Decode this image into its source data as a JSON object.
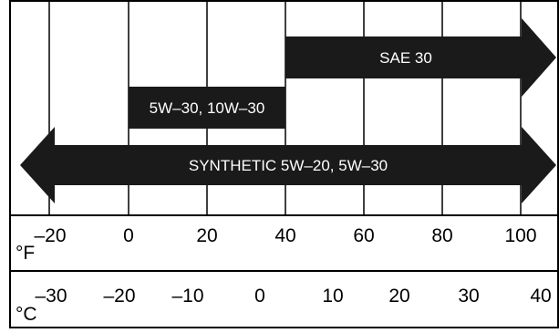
{
  "chart_data": {
    "type": "range-bar",
    "x_unit_primary": "°F",
    "x_unit_secondary": "°C",
    "fahrenheit_ticks": [
      "–20",
      "0",
      "20",
      "40",
      "60",
      "80",
      "100"
    ],
    "celsius_ticks": [
      "–30",
      "–20",
      "–10",
      "0",
      "10",
      "20",
      "30",
      "40"
    ],
    "bars": [
      {
        "label": "SAE 30",
        "from_f": 40,
        "to_f": 100,
        "continues_above": true,
        "continues_below": false
      },
      {
        "label": "5W–30, 10W–30",
        "from_f": 0,
        "to_f": 40,
        "continues_above": false,
        "continues_below": false
      },
      {
        "label": "SYNTHETIC 5W–20, 5W–30",
        "from_f": -20,
        "to_f": 100,
        "continues_above": true,
        "continues_below": true
      }
    ],
    "colors": {
      "bar": "#1a1a1a",
      "bar_text": "#ffffff",
      "grid": "#000000",
      "text": "#000000"
    }
  }
}
